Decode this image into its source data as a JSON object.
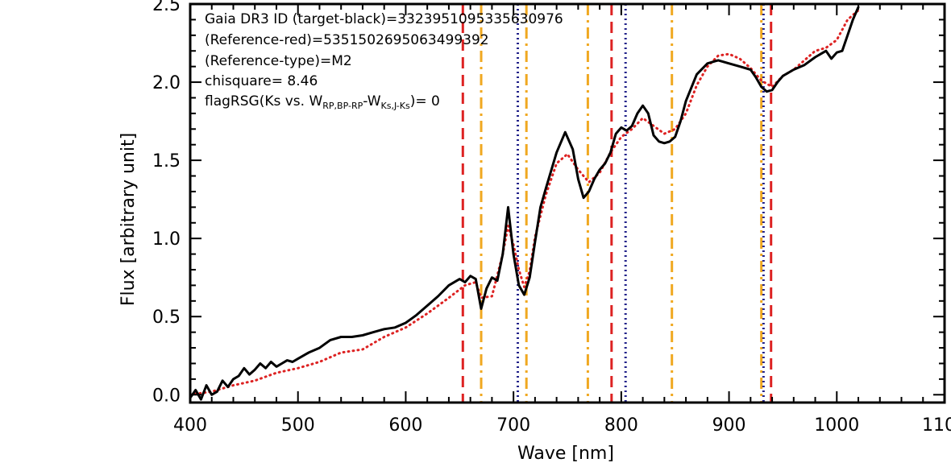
{
  "chart_data": {
    "type": "line",
    "xlabel": "Wave [nm]",
    "ylabel": "Flux [arbitrary unit]",
    "xlim": [
      400,
      1100
    ],
    "ylim": [
      -0.05,
      2.5
    ],
    "x_ticks": [
      400,
      500,
      600,
      700,
      800,
      900,
      1000,
      1100
    ],
    "x_tick_labels": [
      "400",
      "500",
      "600",
      "700",
      "800",
      "900",
      "1000",
      "1100"
    ],
    "y_ticks": [
      0.0,
      0.5,
      1.0,
      1.5,
      2.0,
      2.5
    ],
    "y_tick_labels": [
      "0.0",
      "0.5",
      "1.0",
      "1.5",
      "2.0",
      "2.5"
    ],
    "annotations": {
      "line1": "Gaia DR3 ID (target-black)=3323951095335630976",
      "line2": "(Reference-red)=5351502695063499392",
      "line3": "(Reference-type)=M2",
      "line4": "chisquare= 8.46",
      "line5_main": "flagRSG(Ks vs. W",
      "line5_sub1": "RP,BP-RP",
      "line5_mid": "-W",
      "line5_sub2": "Ks,J-Ks",
      "line5_end": ")= 0"
    },
    "colors": {
      "target": "#000000",
      "reference": "#dd2222",
      "vline_red": "#dd2222",
      "vline_orange": "#f0a820",
      "vline_blue": "#22228a"
    },
    "vlines": [
      {
        "x": 653,
        "style": "red-dash"
      },
      {
        "x": 670,
        "style": "orange-dashdot"
      },
      {
        "x": 704,
        "style": "blue-dot"
      },
      {
        "x": 712,
        "style": "orange-dashdot"
      },
      {
        "x": 769,
        "style": "orange-dashdot"
      },
      {
        "x": 791,
        "style": "red-dash"
      },
      {
        "x": 804,
        "style": "blue-dot"
      },
      {
        "x": 847,
        "style": "orange-dashdot"
      },
      {
        "x": 930,
        "style": "orange-dashdot"
      },
      {
        "x": 932,
        "style": "blue-dot"
      },
      {
        "x": 939,
        "style": "red-dash"
      }
    ],
    "series": [
      {
        "color": "#000000",
        "dash": "solid",
        "x": [
          400,
          405,
          410,
          415,
          420,
          425,
          430,
          435,
          440,
          445,
          450,
          455,
          460,
          465,
          470,
          475,
          480,
          485,
          490,
          495,
          500,
          510,
          520,
          530,
          540,
          550,
          560,
          570,
          580,
          590,
          600,
          610,
          620,
          630,
          640,
          650,
          655,
          660,
          665,
          670,
          675,
          680,
          685,
          690,
          695,
          700,
          705,
          710,
          715,
          720,
          725,
          730,
          740,
          748,
          755,
          760,
          765,
          770,
          775,
          780,
          785,
          790,
          795,
          800,
          805,
          810,
          815,
          820,
          825,
          830,
          835,
          840,
          845,
          850,
          855,
          860,
          870,
          880,
          890,
          900,
          910,
          920,
          925,
          930,
          935,
          940,
          945,
          950,
          960,
          970,
          980,
          990,
          995,
          1000,
          1005,
          1010,
          1015,
          1020
        ],
        "y": [
          -0.02,
          0.03,
          -0.03,
          0.06,
          0.0,
          0.02,
          0.09,
          0.05,
          0.1,
          0.12,
          0.17,
          0.13,
          0.16,
          0.2,
          0.17,
          0.21,
          0.18,
          0.2,
          0.22,
          0.21,
          0.23,
          0.27,
          0.3,
          0.35,
          0.37,
          0.37,
          0.38,
          0.4,
          0.42,
          0.43,
          0.46,
          0.51,
          0.57,
          0.63,
          0.7,
          0.74,
          0.72,
          0.76,
          0.74,
          0.55,
          0.68,
          0.75,
          0.73,
          0.9,
          1.2,
          0.9,
          0.7,
          0.64,
          0.75,
          0.98,
          1.2,
          1.32,
          1.55,
          1.68,
          1.57,
          1.38,
          1.26,
          1.3,
          1.38,
          1.44,
          1.48,
          1.55,
          1.67,
          1.71,
          1.69,
          1.72,
          1.8,
          1.85,
          1.8,
          1.66,
          1.62,
          1.61,
          1.62,
          1.65,
          1.75,
          1.88,
          2.05,
          2.12,
          2.14,
          2.12,
          2.1,
          2.08,
          2.03,
          1.97,
          1.94,
          1.95,
          2.0,
          2.04,
          2.08,
          2.11,
          2.16,
          2.2,
          2.15,
          2.19,
          2.2,
          2.3,
          2.4,
          2.48
        ]
      },
      {
        "color": "#dd2222",
        "dash": "dotted",
        "x": [
          400,
          420,
          440,
          460,
          480,
          500,
          520,
          540,
          560,
          580,
          600,
          620,
          640,
          655,
          665,
          670,
          680,
          690,
          695,
          700,
          705,
          710,
          715,
          720,
          730,
          740,
          750,
          760,
          770,
          780,
          790,
          800,
          810,
          820,
          830,
          840,
          850,
          860,
          870,
          880,
          890,
          900,
          910,
          920,
          930,
          940,
          950,
          960,
          970,
          980,
          990,
          1000,
          1010,
          1020
        ],
        "y": [
          0.0,
          0.02,
          0.06,
          0.09,
          0.14,
          0.17,
          0.21,
          0.27,
          0.29,
          0.37,
          0.43,
          0.52,
          0.62,
          0.7,
          0.72,
          0.62,
          0.63,
          0.9,
          1.08,
          0.96,
          0.8,
          0.69,
          0.79,
          1.01,
          1.28,
          1.48,
          1.54,
          1.44,
          1.36,
          1.42,
          1.55,
          1.65,
          1.7,
          1.77,
          1.72,
          1.67,
          1.7,
          1.8,
          1.98,
          2.1,
          2.17,
          2.18,
          2.15,
          2.09,
          2.01,
          1.97,
          2.04,
          2.08,
          2.14,
          2.2,
          2.22,
          2.27,
          2.4,
          2.46
        ]
      }
    ]
  }
}
